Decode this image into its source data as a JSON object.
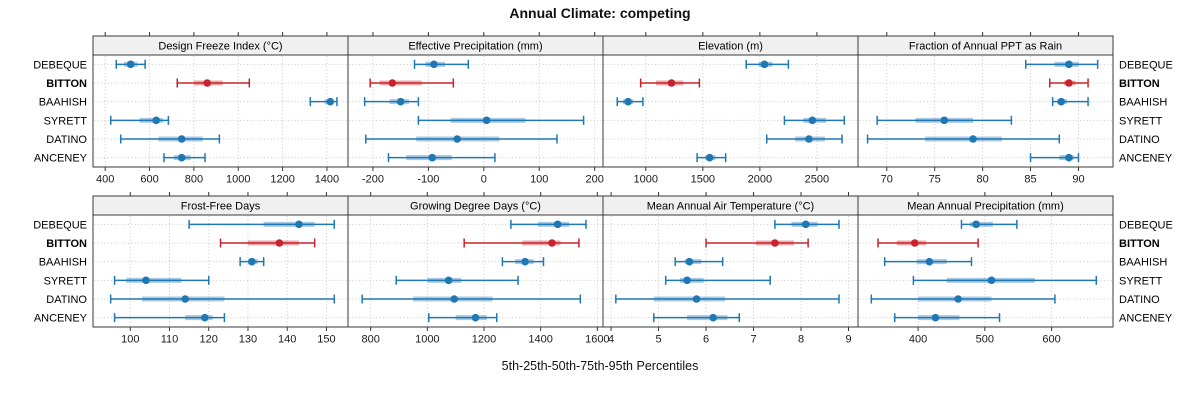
{
  "title": "Annual Climate: competing",
  "xlabel": "5th-25th-50th-75th-95th Percentiles",
  "stations": [
    "DEBEQUE",
    "BITTON",
    "BAAHISH",
    "SYRETT",
    "DATINO",
    "ANCENEY"
  ],
  "highlight_station": "BITTON",
  "colors": {
    "series": "#1f77b4",
    "highlight": "#c8232c",
    "strip_bg": "#f0f0f0",
    "grid": "#c8c8c8",
    "panel_border": "#3a3a3a",
    "tick": "#333333",
    "text": "#000000"
  },
  "chart_data": {
    "type": "dot-interval-trellis",
    "percentiles": [
      "5th",
      "25th",
      "50th",
      "75th",
      "95th"
    ],
    "layout": {
      "rows": 2,
      "cols": 4,
      "grid": "dotted",
      "legend": "none",
      "station_labels": "left-and-right",
      "highlight_bold": true
    },
    "panels": [
      {
        "title": "Design Freeze Index (°C)",
        "xlim": [
          345,
          1495
        ],
        "ticks": [
          400,
          600,
          800,
          1000,
          1200,
          1400
        ],
        "series": [
          [
            450,
            485,
            515,
            545,
            580
          ],
          [
            725,
            800,
            860,
            930,
            1050
          ],
          [
            1325,
            1390,
            1415,
            1430,
            1445
          ],
          [
            425,
            555,
            630,
            660,
            685
          ],
          [
            470,
            640,
            745,
            840,
            915
          ],
          [
            665,
            710,
            745,
            785,
            850
          ]
        ]
      },
      {
        "title": "Effective Precipitation (mm)",
        "xlim": [
          -245,
          215
        ],
        "ticks": [
          -200,
          -100,
          0,
          100,
          200
        ],
        "series": [
          [
            -125,
            -105,
            -90,
            -70,
            -28
          ],
          [
            -205,
            -188,
            -165,
            -112,
            -55
          ],
          [
            -215,
            -170,
            -150,
            -135,
            -118
          ],
          [
            -118,
            -60,
            5,
            75,
            180
          ],
          [
            -213,
            -122,
            -48,
            28,
            132
          ],
          [
            -172,
            -140,
            -93,
            -58,
            20
          ]
        ]
      },
      {
        "title": "Elevation (m)",
        "xlim": [
          625,
          2860
        ],
        "ticks": [
          1000,
          1500,
          2000,
          2500
        ],
        "series": [
          [
            1880,
            1990,
            2040,
            2110,
            2250
          ],
          [
            955,
            1090,
            1225,
            1330,
            1470
          ],
          [
            750,
            800,
            845,
            890,
            975
          ],
          [
            2215,
            2380,
            2460,
            2580,
            2740
          ],
          [
            2060,
            2310,
            2430,
            2570,
            2720
          ],
          [
            1450,
            1520,
            1560,
            1610,
            1700
          ]
        ]
      },
      {
        "title": "Fraction of Annual PPT as Rain",
        "xlim": [
          67,
          93.6
        ],
        "ticks": [
          70,
          75,
          80,
          85,
          90
        ],
        "series": [
          [
            84.5,
            87.5,
            89,
            90,
            92
          ],
          [
            87,
            88.5,
            89,
            89.7,
            91
          ],
          [
            87.3,
            87.8,
            88.2,
            88.8,
            91
          ],
          [
            69,
            73,
            76,
            79,
            83
          ],
          [
            68,
            74,
            79,
            82,
            88
          ],
          [
            85,
            88,
            89,
            89.5,
            90
          ]
        ]
      },
      {
        "title": "Frost-Free Days",
        "xlim": [
          90.5,
          155.5
        ],
        "ticks": [
          100,
          110,
          120,
          130,
          140,
          150
        ],
        "series": [
          [
            115,
            134,
            143,
            147,
            152
          ],
          [
            123,
            130,
            138,
            143,
            147
          ],
          [
            128,
            130,
            131,
            132.5,
            134
          ],
          [
            96,
            99,
            104,
            113,
            120
          ],
          [
            95,
            103,
            114,
            124,
            152
          ],
          [
            96,
            114,
            119,
            121,
            124
          ]
        ]
      },
      {
        "title": "Growing Degree Days (°C)",
        "xlim": [
          720,
          1620
        ],
        "ticks": [
          800,
          1000,
          1200,
          1400,
          1600
        ],
        "series": [
          [
            1295,
            1390,
            1460,
            1500,
            1560
          ],
          [
            1130,
            1335,
            1440,
            1470,
            1535
          ],
          [
            1265,
            1310,
            1345,
            1375,
            1410
          ],
          [
            890,
            1000,
            1075,
            1120,
            1320
          ],
          [
            770,
            950,
            1095,
            1230,
            1540
          ],
          [
            1005,
            1100,
            1170,
            1210,
            1245
          ]
        ]
      },
      {
        "title": "Mean Annual Air Temperature (°C)",
        "xlim": [
          3.83,
          9.2
        ],
        "ticks": [
          4,
          5,
          6,
          7,
          8,
          9
        ],
        "series": [
          [
            7.45,
            7.8,
            8.1,
            8.35,
            8.8
          ],
          [
            6.0,
            7.05,
            7.45,
            7.85,
            8.15
          ],
          [
            5.35,
            5.55,
            5.65,
            5.9,
            6.35
          ],
          [
            5.15,
            5.45,
            5.6,
            5.95,
            7.35
          ],
          [
            4.1,
            4.9,
            5.8,
            6.4,
            8.8
          ],
          [
            4.9,
            5.6,
            6.15,
            6.45,
            6.7
          ]
        ]
      },
      {
        "title": "Mean Annual Precipitation (mm)",
        "xlim": [
          310,
          692
        ],
        "ticks": [
          400,
          500,
          600
        ],
        "series": [
          [
            465,
            478,
            487,
            512,
            548
          ],
          [
            340,
            368,
            395,
            412,
            490
          ],
          [
            350,
            398,
            417,
            443,
            480
          ],
          [
            393,
            443,
            510,
            575,
            667
          ],
          [
            330,
            400,
            460,
            510,
            605
          ],
          [
            365,
            400,
            426,
            462,
            522
          ]
        ]
      }
    ]
  }
}
